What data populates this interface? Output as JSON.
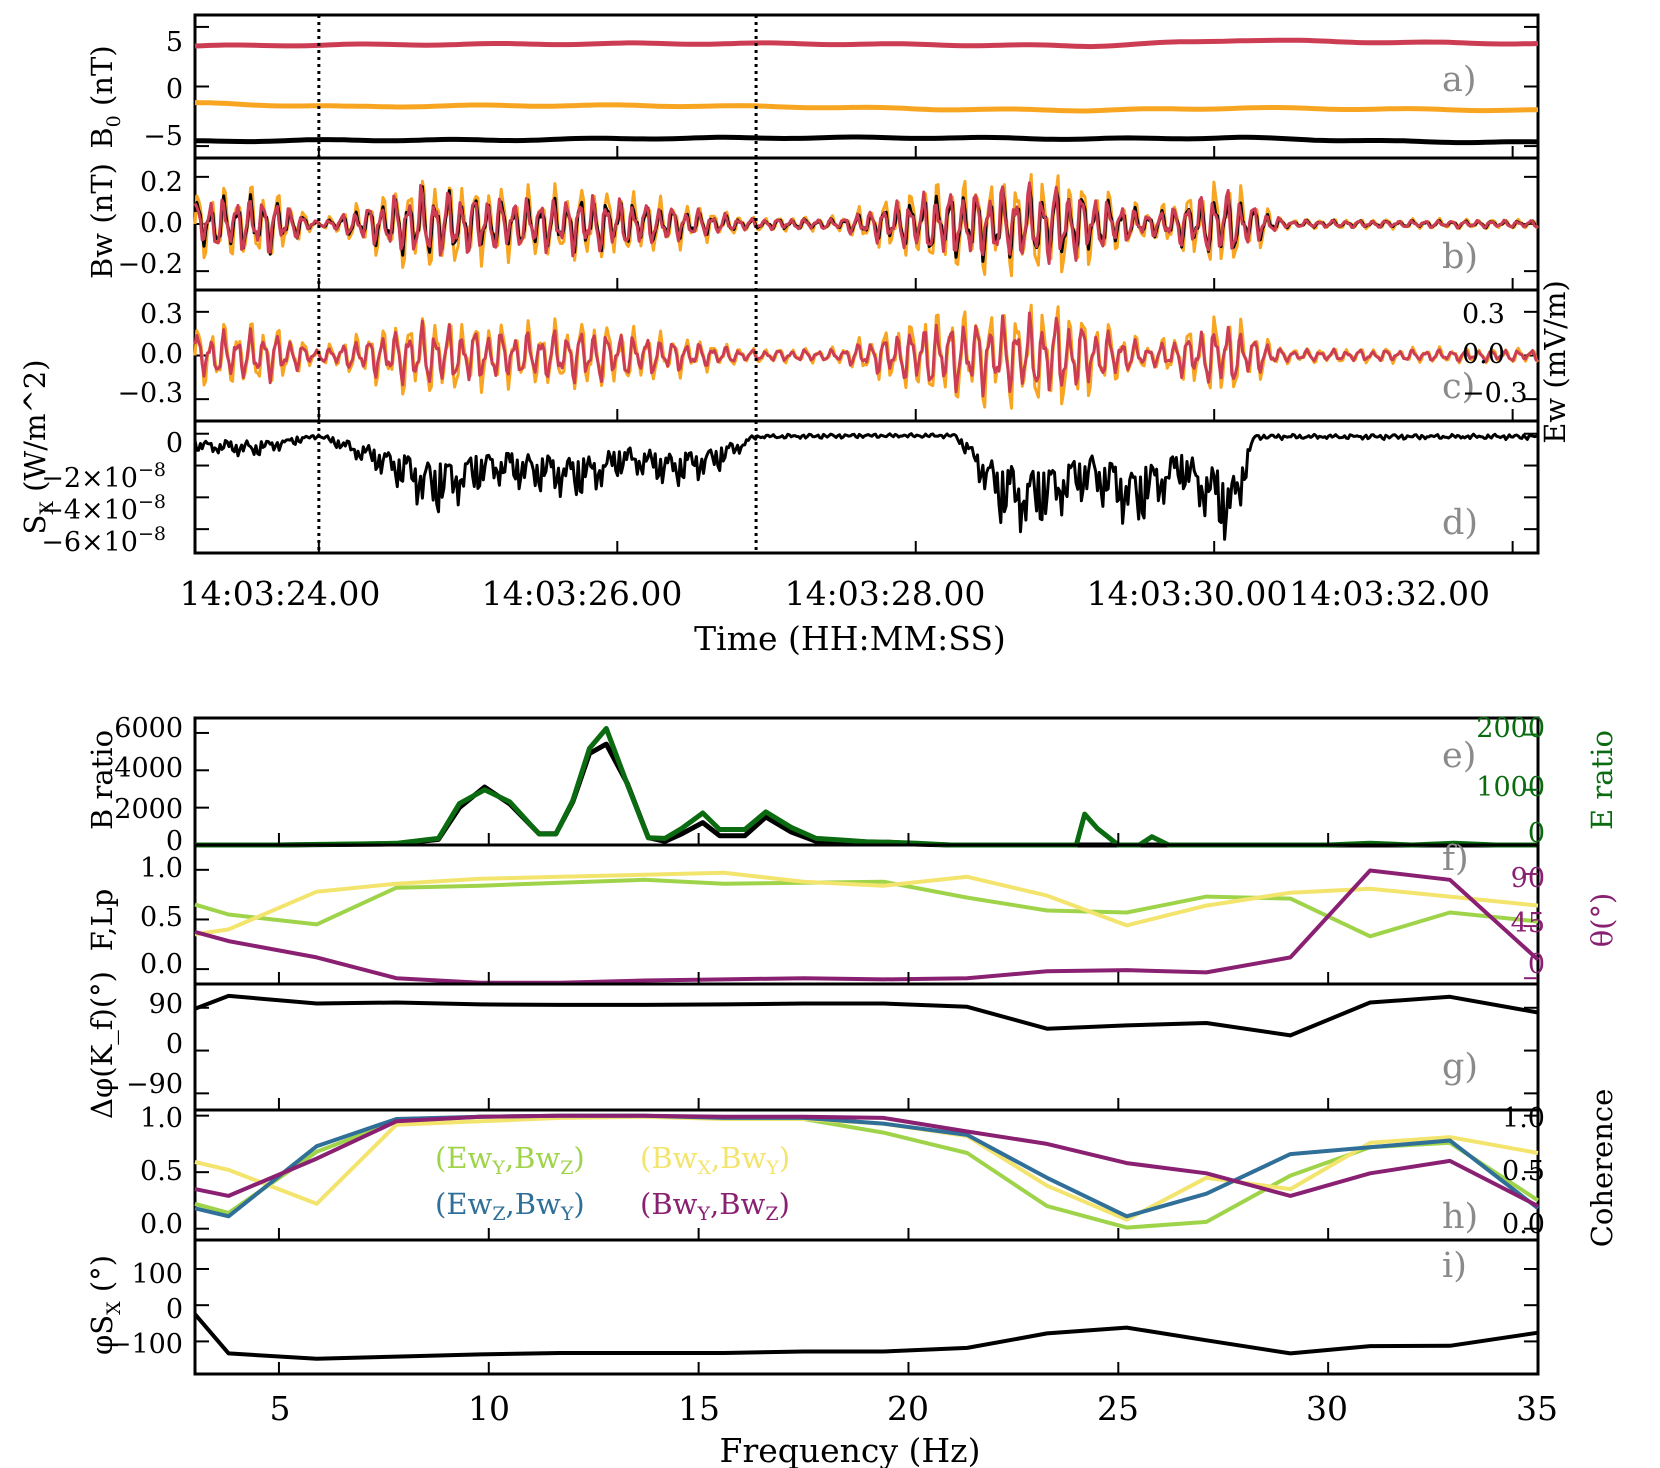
{
  "colors": {
    "black": "#000000",
    "red": "#cc3c52",
    "orange": "#f8a622",
    "darkgreen": "#0b6b10",
    "lightgreen": "#9fd44a",
    "yellow": "#f3e46e",
    "blue": "#2f6f98",
    "purple": "#8a2072",
    "panelLabel": "#8a8a8a"
  },
  "chart_data": [
    {
      "id": "a",
      "type": "line",
      "panel_label": "a)",
      "ylabel": "B",
      "ylabel_sub": "0",
      "ylabel_suffix": " (nT)",
      "ylim": [
        -6,
        6
      ],
      "yticks": [
        5,
        0,
        -5
      ],
      "ytick_labels": [
        "5",
        "0",
        "−5"
      ],
      "x_seconds": [
        0,
        1,
        2,
        3,
        4,
        5,
        6,
        7,
        8,
        9
      ],
      "series": [
        {
          "name": "red",
          "color": "#cc3c52",
          "values": [
            3.4,
            3.5,
            3.55,
            3.6,
            3.6,
            3.5,
            3.4,
            3.9,
            3.7,
            3.6
          ]
        },
        {
          "name": "orange",
          "color": "#f8a622",
          "values": [
            -1.4,
            -1.7,
            -1.6,
            -1.6,
            -1.7,
            -1.9,
            -2.0,
            -1.8,
            -1.9,
            -2.0
          ]
        },
        {
          "name": "black",
          "color": "#000000",
          "values": [
            -4.6,
            -4.5,
            -4.5,
            -4.35,
            -4.3,
            -4.3,
            -4.4,
            -4.3,
            -4.6,
            -4.7
          ]
        }
      ]
    },
    {
      "id": "b",
      "type": "line",
      "panel_label": "b)",
      "ylabel": "Bw (nT)",
      "ylim": [
        -0.28,
        0.28
      ],
      "yticks": [
        0.2,
        0.0,
        -0.2
      ],
      "ytick_labels": [
        "0.2",
        "0.0",
        "−0.2"
      ],
      "x_seconds": [
        0,
        0.5,
        0.83,
        1.5,
        2.2,
        2.65,
        3.2,
        3.7,
        4.3,
        4.95,
        5.8,
        6.4,
        6.9,
        7.3,
        8.0,
        9.0
      ],
      "envelope_nT": [
        0.14,
        0.16,
        0.01,
        0.2,
        0.14,
        0.16,
        0.1,
        0.03,
        0.03,
        0.18,
        0.22,
        0.06,
        0.2,
        0.02,
        0.02,
        0.02
      ],
      "series": [
        {
          "name": "orange",
          "color": "#f8a622"
        },
        {
          "name": "black",
          "color": "#000000"
        },
        {
          "name": "red",
          "color": "#cc3c52"
        }
      ]
    },
    {
      "id": "c",
      "type": "line",
      "panel_label": "c)",
      "ylabel_right": "Ew (mV/m)",
      "ylim": [
        -0.45,
        0.45
      ],
      "yticks": [
        0.3,
        0.0,
        -0.3
      ],
      "ytick_labels_left": [
        "0.3",
        "0.0",
        "−0.3"
      ],
      "ytick_labels_right": [
        "0.3",
        "0.0",
        "−0.3"
      ],
      "x_seconds": [
        0,
        0.5,
        0.83,
        1.5,
        2.2,
        2.65,
        3.2,
        3.7,
        4.3,
        4.95,
        5.8,
        6.4,
        6.9,
        7.3,
        8.0,
        9.0
      ],
      "envelope_mVm": [
        0.2,
        0.22,
        0.05,
        0.28,
        0.2,
        0.24,
        0.14,
        0.05,
        0.05,
        0.3,
        0.36,
        0.08,
        0.3,
        0.05,
        0.05,
        0.05
      ],
      "series": [
        {
          "name": "orange",
          "color": "#f8a622"
        },
        {
          "name": "red",
          "color": "#cc3c52"
        }
      ]
    },
    {
      "id": "d",
      "type": "line",
      "panel_label": "d)",
      "ylabel": "S",
      "ylabel_sub": "X",
      "ylabel_suffix": " (W/m^2)",
      "ylim_e8": [
        -7.5,
        0.8
      ],
      "yticks_e8": [
        0,
        -2,
        -4,
        -6
      ],
      "ytick_labels": [
        "0",
        "−2×10",
        "−4×10",
        "−6×10"
      ],
      "ytick_exponent": "−8",
      "x_seconds": [
        0,
        0.4,
        0.83,
        1.3,
        1.6,
        2.0,
        2.6,
        2.9,
        3.2,
        3.5,
        3.76,
        4.5,
        5.1,
        5.4,
        5.6,
        6.0,
        6.3,
        6.6,
        6.95,
        7.1,
        9.0
      ],
      "min_e8": [
        -1.2,
        -1.5,
        -0.2,
        -3.0,
        -5.3,
        -3.3,
        -4.2,
        -2.5,
        -3.5,
        -2.5,
        -0.3,
        -0.2,
        -0.2,
        -5.8,
        -6.5,
        -4.0,
        -6.3,
        -3.5,
        -7.5,
        -0.3,
        -0.3
      ],
      "series": [
        {
          "name": "black",
          "color": "#000000"
        }
      ]
    },
    {
      "id": "e",
      "type": "line",
      "panel_label": "e)",
      "ylabel": "B ratio",
      "ylabel_right": "E ratio",
      "ylim": [
        0,
        6800
      ],
      "yticks": [
        6000,
        4000,
        2000,
        0
      ],
      "ytick_labels": [
        "6000",
        "4000",
        "2000",
        "0"
      ],
      "ylim_right": [
        0,
        2300
      ],
      "yticks_right": [
        2000,
        1000,
        0
      ],
      "ytick_labels_right": [
        "2000",
        "1000",
        "0"
      ],
      "x": [
        3,
        4,
        5,
        6,
        7,
        7.8,
        8.8,
        9.3,
        9.9,
        10.5,
        11.2,
        11.6,
        12.0,
        12.4,
        12.8,
        13.3,
        13.8,
        14.2,
        14.6,
        15.1,
        15.5,
        16.1,
        16.6,
        17.2,
        17.8,
        18.4,
        19.0,
        19.5,
        20.2,
        21.0,
        22,
        23,
        24.0,
        24.2,
        24.5,
        25.0,
        25.5,
        25.8,
        26.2,
        27,
        28,
        29,
        30,
        31,
        32,
        33,
        34,
        35
      ],
      "series": [
        {
          "name": "B ratio",
          "color": "#000000",
          "axis": "left",
          "values": [
            0,
            0,
            0,
            20,
            40,
            60,
            300,
            2000,
            3100,
            2200,
            600,
            600,
            2300,
            4900,
            5400,
            3300,
            400,
            200,
            600,
            1200,
            500,
            500,
            1500,
            700,
            200,
            150,
            100,
            150,
            50,
            0,
            0,
            0,
            0,
            0,
            0,
            0,
            0,
            0,
            0,
            0,
            0,
            0,
            0,
            0,
            0,
            0,
            0,
            0
          ]
        },
        {
          "name": "E ratio",
          "color": "#0b6b10",
          "axis": "right",
          "values": [
            0,
            0,
            0,
            10,
            20,
            30,
            120,
            750,
            1000,
            780,
            200,
            200,
            800,
            1750,
            2110,
            1100,
            130,
            120,
            300,
            580,
            280,
            280,
            600,
            320,
            120,
            90,
            60,
            50,
            30,
            0,
            0,
            0,
            0,
            560,
            300,
            0,
            0,
            150,
            0,
            0,
            0,
            0,
            0,
            30,
            0,
            30,
            0,
            0
          ]
        }
      ]
    },
    {
      "id": "f",
      "type": "line",
      "panel_label": "f)",
      "ylabel": "F,Lp",
      "ylabel_right": "θ(°)",
      "ylim": [
        -0.15,
        1.25
      ],
      "yticks": [
        1.0,
        0.5,
        0.0
      ],
      "ytick_labels": [
        "1.0",
        "0.5",
        "0.0"
      ],
      "ylim_right": [
        -5,
        115
      ],
      "yticks_right": [
        90,
        45,
        0
      ],
      "ytick_labels_right": [
        "90",
        "45",
        "0"
      ],
      "x": [
        3,
        3.8,
        5.9,
        7.8,
        9.8,
        11.7,
        13.7,
        15.6,
        17.5,
        19.4,
        21.4,
        23.3,
        25.2,
        27.1,
        29.1,
        31.0,
        32.9,
        35
      ],
      "series": [
        {
          "name": "F",
          "color": "#9fd44a",
          "axis": "left",
          "values": [
            0.65,
            0.55,
            0.45,
            0.82,
            0.84,
            0.87,
            0.9,
            0.86,
            0.87,
            0.88,
            0.72,
            0.59,
            0.57,
            0.73,
            0.71,
            0.33,
            0.57,
            0.48
          ]
        },
        {
          "name": "Lp",
          "color": "#f3e46e",
          "axis": "left",
          "values": [
            0.35,
            0.4,
            0.78,
            0.86,
            0.91,
            0.93,
            0.95,
            0.97,
            0.88,
            0.84,
            0.93,
            0.74,
            0.44,
            0.64,
            0.77,
            0.81,
            0.73,
            0.64
          ]
        },
        {
          "name": "theta",
          "color": "#8a2072",
          "axis": "right",
          "values": [
            40,
            32,
            18,
            0,
            -4,
            -4,
            -2,
            -1,
            0,
            -1,
            0,
            6,
            7,
            5,
            18,
            93,
            85,
            16
          ]
        }
      ]
    },
    {
      "id": "g",
      "type": "line",
      "panel_label": "g)",
      "ylabel": "Δφ(K_f)(°)",
      "ylim": [
        -125,
        140
      ],
      "yticks": [
        90,
        0,
        -90
      ],
      "ytick_labels": [
        "90",
        "0",
        "−90"
      ],
      "x": [
        3,
        3.8,
        5.9,
        7.8,
        9.8,
        11.7,
        13.7,
        15.6,
        17.5,
        19.4,
        21.4,
        23.3,
        25.2,
        27.1,
        29.1,
        31.0,
        32.9,
        35
      ],
      "series": [
        {
          "name": "black",
          "color": "#000000",
          "values": [
            88,
            115,
            99,
            101,
            97,
            96,
            96,
            97,
            99,
            99,
            92,
            46,
            53,
            58,
            32,
            101,
            113,
            80
          ]
        }
      ]
    },
    {
      "id": "h",
      "type": "line",
      "panel_label": "h)",
      "ylabel_right": "Coherence",
      "ylim": [
        -0.1,
        1.05
      ],
      "yticks": [
        1.0,
        0.5,
        0.0
      ],
      "ytick_labels": [
        "1.0",
        "0.5",
        "0.0"
      ],
      "legend_labels": [
        "(Ew",
        "Y",
        ",Bw",
        "Z",
        ")",
        "(Bw",
        "X",
        ",Bw",
        "Y",
        ")",
        "(Ew",
        "Z",
        ",Bw",
        "Y",
        ")",
        "(Bw",
        "Y",
        ",Bw",
        "Z",
        ")"
      ],
      "x": [
        3,
        3.8,
        5.9,
        7.8,
        9.8,
        11.7,
        13.7,
        15.6,
        17.5,
        19.4,
        21.4,
        23.3,
        25.2,
        27.1,
        29.1,
        31.0,
        32.9,
        35
      ],
      "series": [
        {
          "name": "(EwY,BwZ)",
          "color": "#9fd44a",
          "values": [
            0.22,
            0.14,
            0.68,
            0.95,
            0.99,
            1.0,
            1.0,
            0.98,
            0.97,
            0.85,
            0.67,
            0.2,
            0.01,
            0.06,
            0.47,
            0.72,
            0.76,
            0.25
          ]
        },
        {
          "name": "(BwX,BwY)",
          "color": "#f3e46e",
          "values": [
            0.59,
            0.52,
            0.22,
            0.92,
            0.95,
            0.98,
            0.99,
            0.97,
            0.97,
            0.93,
            0.82,
            0.38,
            0.08,
            0.45,
            0.35,
            0.76,
            0.81,
            0.67
          ]
        },
        {
          "name": "(EwZ,BwY)",
          "color": "#2f6f98",
          "values": [
            0.18,
            0.11,
            0.73,
            0.97,
            0.99,
            1.0,
            1.0,
            0.98,
            0.98,
            0.93,
            0.83,
            0.45,
            0.11,
            0.31,
            0.66,
            0.72,
            0.78,
            0.18
          ]
        },
        {
          "name": "(BwY,BwZ)",
          "color": "#8a2072",
          "values": [
            0.35,
            0.29,
            0.62,
            0.95,
            0.99,
            1.0,
            1.0,
            0.99,
            0.99,
            0.98,
            0.86,
            0.75,
            0.58,
            0.49,
            0.29,
            0.49,
            0.6,
            0.2
          ]
        }
      ]
    },
    {
      "id": "i",
      "type": "line",
      "panel_label": "i)",
      "ylabel": "φS",
      "ylabel_sub": "X",
      "ylabel_suffix": " (°)",
      "ylim": [
        -190,
        180
      ],
      "yticks": [
        100,
        0,
        -100
      ],
      "ytick_labels": [
        "100",
        "0",
        "−100"
      ],
      "x": [
        3,
        3.8,
        5.9,
        7.8,
        9.8,
        11.7,
        13.7,
        15.6,
        17.5,
        19.4,
        21.4,
        23.3,
        25.2,
        27.1,
        29.1,
        31.0,
        32.9,
        35
      ],
      "series": [
        {
          "name": "black",
          "color": "#000000",
          "values": [
            -25,
            -133,
            -148,
            -142,
            -136,
            -132,
            -132,
            -132,
            -128,
            -128,
            -118,
            -78,
            -62,
            -97,
            -133,
            -113,
            -112,
            -76
          ]
        }
      ]
    }
  ],
  "time_axis": {
    "xlabel": "Time (HH:MM:SS)",
    "tick_labels": [
      "14:03:24.00",
      "14:03:26.00",
      "14:03:28.00",
      "14:03:30.00",
      "14:03:32.00"
    ],
    "tick_seconds": [
      0.83,
      2.83,
      4.83,
      6.83,
      8.83
    ],
    "range_seconds": [
      0,
      9
    ],
    "marker_lines_seconds": [
      0.83,
      3.76
    ]
  },
  "freq_axis": {
    "xlabel": "Frequency (Hz)",
    "range": [
      3,
      35
    ],
    "ticks": [
      5,
      10,
      15,
      20,
      25,
      30,
      35
    ],
    "tick_labels": [
      "5",
      "10",
      "15",
      "20",
      "25",
      "30",
      "35"
    ]
  }
}
